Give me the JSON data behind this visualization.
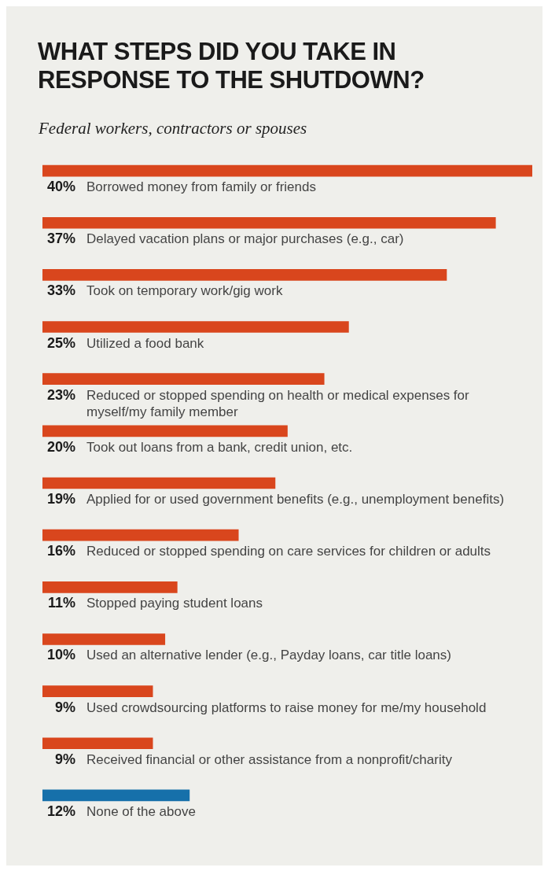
{
  "chart_data": {
    "type": "bar",
    "orientation": "horizontal",
    "title": "WHAT STEPS DID YOU TAKE IN RESPONSE TO THE SHUTDOWN?",
    "subtitle": "Federal workers, contractors or spouses",
    "categories": [
      "Borrowed money from family or friends",
      "Delayed vacation plans or major purchases (e.g., car)",
      "Took on temporary work/gig work",
      "Utilized a food bank",
      "Reduced or stopped spending on health or medical expenses for myself/my family member",
      "Took out loans from a bank, credit union, etc.",
      "Applied for or used government benefits (e.g., unemployment benefits)",
      "Reduced or stopped spending on care services for children or adults",
      "Stopped paying student loans",
      "Used an alternative lender (e.g., Payday loans, car title loans)",
      "Used crowdsourcing platforms to raise money for me/my household",
      "Received financial or other assistance from a nonprofit/charity",
      "None of the above"
    ],
    "values": [
      40,
      37,
      33,
      25,
      23,
      20,
      19,
      16,
      11,
      10,
      9,
      9,
      12
    ],
    "value_labels": [
      "40%",
      "37%",
      "33%",
      "25%",
      "23%",
      "20%",
      "19%",
      "16%",
      "11%",
      "10%",
      "9%",
      "9%",
      "12%"
    ],
    "colors": [
      "#d9461d",
      "#d9461d",
      "#d9461d",
      "#d9461d",
      "#d9461d",
      "#d9461d",
      "#d9461d",
      "#d9461d",
      "#d9461d",
      "#d9461d",
      "#d9461d",
      "#d9461d",
      "#1670aa"
    ],
    "xlim": [
      0,
      40
    ]
  }
}
